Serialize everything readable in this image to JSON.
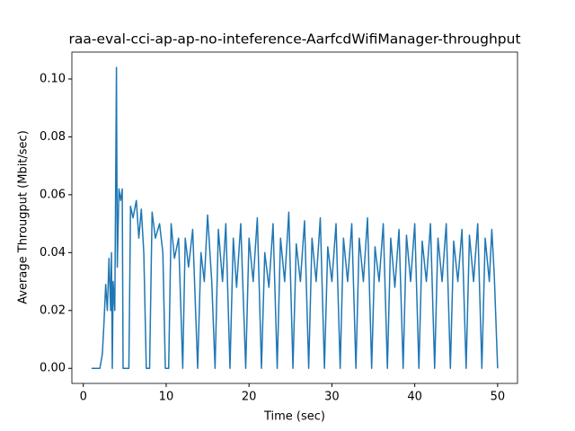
{
  "chart_data": {
    "type": "line",
    "title": "raa-eval-cci-ap-ap-no-inteference-AarfcdWifiManager-throughput",
    "x_label": "Time (sec)",
    "y_label": "Average Througput (Mbit/sec)",
    "xlim": [
      -1.38,
      52.4
    ],
    "ylim": [
      -0.0052,
      0.1093
    ],
    "xticks": [
      0,
      10,
      20,
      30,
      40,
      50
    ],
    "yticks": [
      {
        "value": 0,
        "label": "0.00"
      },
      0.02,
      0.04,
      0.06,
      0.08,
      {
        "value": 0.1,
        "label": "0.10"
      }
    ],
    "series": [
      {
        "name": "throughput",
        "color": "#1f77b4",
        "x": [
          1,
          1.5,
          2,
          2.3,
          2.5,
          2.7,
          2.9,
          3.1,
          3.3,
          3.4,
          3.5,
          3.6,
          3.8,
          4.0,
          4.1,
          4.3,
          4.5,
          4.7,
          4.8,
          5.5,
          5.7,
          6.0,
          6.4,
          6.7,
          7.0,
          7.3,
          7.6,
          8.0,
          8.3,
          8.7,
          9.2,
          9.6,
          9.9,
          10.3,
          10.6,
          11,
          11.5,
          12,
          12.3,
          12.7,
          13.2,
          13.8,
          14.2,
          14.6,
          15,
          15.5,
          15.9,
          16.3,
          16.8,
          17.2,
          17.7,
          18.1,
          18.5,
          19,
          19.6,
          20,
          20.5,
          21,
          21.5,
          21.9,
          22.4,
          22.9,
          23.4,
          23.8,
          24.3,
          24.8,
          25.3,
          25.7,
          26.2,
          26.7,
          27.2,
          27.6,
          28.1,
          28.6,
          29.1,
          29.5,
          30,
          30.5,
          31,
          31.4,
          31.9,
          32.4,
          32.9,
          33.3,
          33.8,
          34.3,
          34.8,
          35.2,
          35.7,
          36.2,
          36.7,
          37.1,
          37.6,
          38.1,
          38.6,
          39,
          39.5,
          40,
          40.5,
          40.9,
          41.4,
          41.9,
          42.4,
          42.8,
          43.3,
          43.8,
          44.3,
          44.7,
          45.2,
          45.7,
          46.2,
          46.6,
          47.1,
          47.6,
          48.1,
          48.5,
          49,
          49.3,
          49.6,
          50
        ],
        "values": [
          0,
          0,
          0,
          0.005,
          0.016,
          0.029,
          0.02,
          0.038,
          0.02,
          0.04,
          0,
          0.03,
          0.02,
          0.104,
          0.035,
          0.062,
          0.058,
          0.062,
          0,
          0,
          0.056,
          0.052,
          0.058,
          0.045,
          0.055,
          0.04,
          0,
          0,
          0.054,
          0.045,
          0.05,
          0.04,
          0,
          0,
          0.05,
          0.038,
          0.045,
          0,
          0.045,
          0.035,
          0.048,
          0,
          0.04,
          0.03,
          0.053,
          0.03,
          0,
          0.048,
          0.03,
          0.05,
          0,
          0.045,
          0.028,
          0.05,
          0,
          0.045,
          0.03,
          0.052,
          0,
          0.04,
          0.028,
          0.05,
          0,
          0.045,
          0.03,
          0.054,
          0,
          0.043,
          0.03,
          0.051,
          0,
          0.045,
          0.03,
          0.052,
          0,
          0.042,
          0.03,
          0.05,
          0,
          0.045,
          0.03,
          0.05,
          0,
          0.045,
          0.03,
          0.052,
          0,
          0.042,
          0.03,
          0.05,
          0,
          0.045,
          0.028,
          0.048,
          0,
          0.046,
          0.03,
          0.05,
          0,
          0.044,
          0.03,
          0.05,
          0,
          0.045,
          0.03,
          0.05,
          0,
          0.044,
          0.03,
          0.048,
          0,
          0.046,
          0.03,
          0.05,
          0,
          0.045,
          0.03,
          0.048,
          0.032,
          0
        ]
      }
    ]
  }
}
